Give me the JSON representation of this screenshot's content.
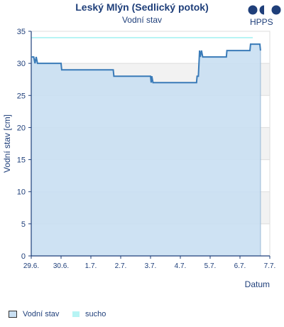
{
  "header": {
    "title": "Leský Mlýn (Sedlický potok)",
    "subtitle": "Vodní stav",
    "logo_text": "HPPS"
  },
  "legend": {
    "items": [
      {
        "label": "Vodní stav",
        "color": "#c9dff2",
        "border": "#333333"
      },
      {
        "label": "sucho",
        "color": "#b7f4f4"
      }
    ]
  },
  "colors": {
    "line": "#3a7bb8",
    "area": "#c9dff2",
    "threshold": "#b7f4f4",
    "axis": "#1f3f7a",
    "band": "#f2f2f2"
  },
  "chart_data": {
    "type": "area",
    "title": "Leský Mlýn (Sedlický potok)",
    "subtitle": "Vodní stav",
    "xlabel": "Datum",
    "ylabel": "Vodní stav [cm]",
    "ylim": [
      0,
      35
    ],
    "yticks": [
      0,
      5,
      10,
      15,
      20,
      25,
      30,
      35
    ],
    "xlim": [
      "29.6.",
      "7.7."
    ],
    "xticks": [
      "29.6.",
      "30.6.",
      "1.7.",
      "2.7.",
      "3.7.",
      "4.7.",
      "5.7.",
      "6.7.",
      "7.7."
    ],
    "threshold": {
      "name": "sucho",
      "value": 34
    },
    "grid": true,
    "legend_position": "bottom",
    "series": [
      {
        "name": "Vodní stav",
        "points": [
          [
            "29.6. 00:00",
            31
          ],
          [
            "29.6. 02:00",
            31
          ],
          [
            "29.6. 03:00",
            30
          ],
          [
            "29.6. 04:00",
            31
          ],
          [
            "29.6. 05:00",
            30
          ],
          [
            "30.6. 00:00",
            30
          ],
          [
            "30.6. 00:30",
            29
          ],
          [
            "1.7. 18:00",
            29
          ],
          [
            "1.7. 18:30",
            28
          ],
          [
            "3.7. 00:00",
            28
          ],
          [
            "3.7. 00:30",
            27
          ],
          [
            "3.7. 01:00",
            28
          ],
          [
            "3.7. 02:00",
            27
          ],
          [
            "4.7. 13:00",
            27
          ],
          [
            "4.7. 13:30",
            28
          ],
          [
            "4.7. 14:30",
            28
          ],
          [
            "4.7. 15:30",
            32
          ],
          [
            "4.7. 16:00",
            31
          ],
          [
            "4.7. 17:00",
            32
          ],
          [
            "4.7. 18:00",
            31
          ],
          [
            "5.7. 13:00",
            31
          ],
          [
            "5.7. 13:30",
            32
          ],
          [
            "6.7. 08:00",
            32
          ],
          [
            "6.7. 08:30",
            33
          ],
          [
            "6.7. 16:00",
            33
          ],
          [
            "6.7. 16:30",
            32
          ]
        ]
      }
    ]
  }
}
